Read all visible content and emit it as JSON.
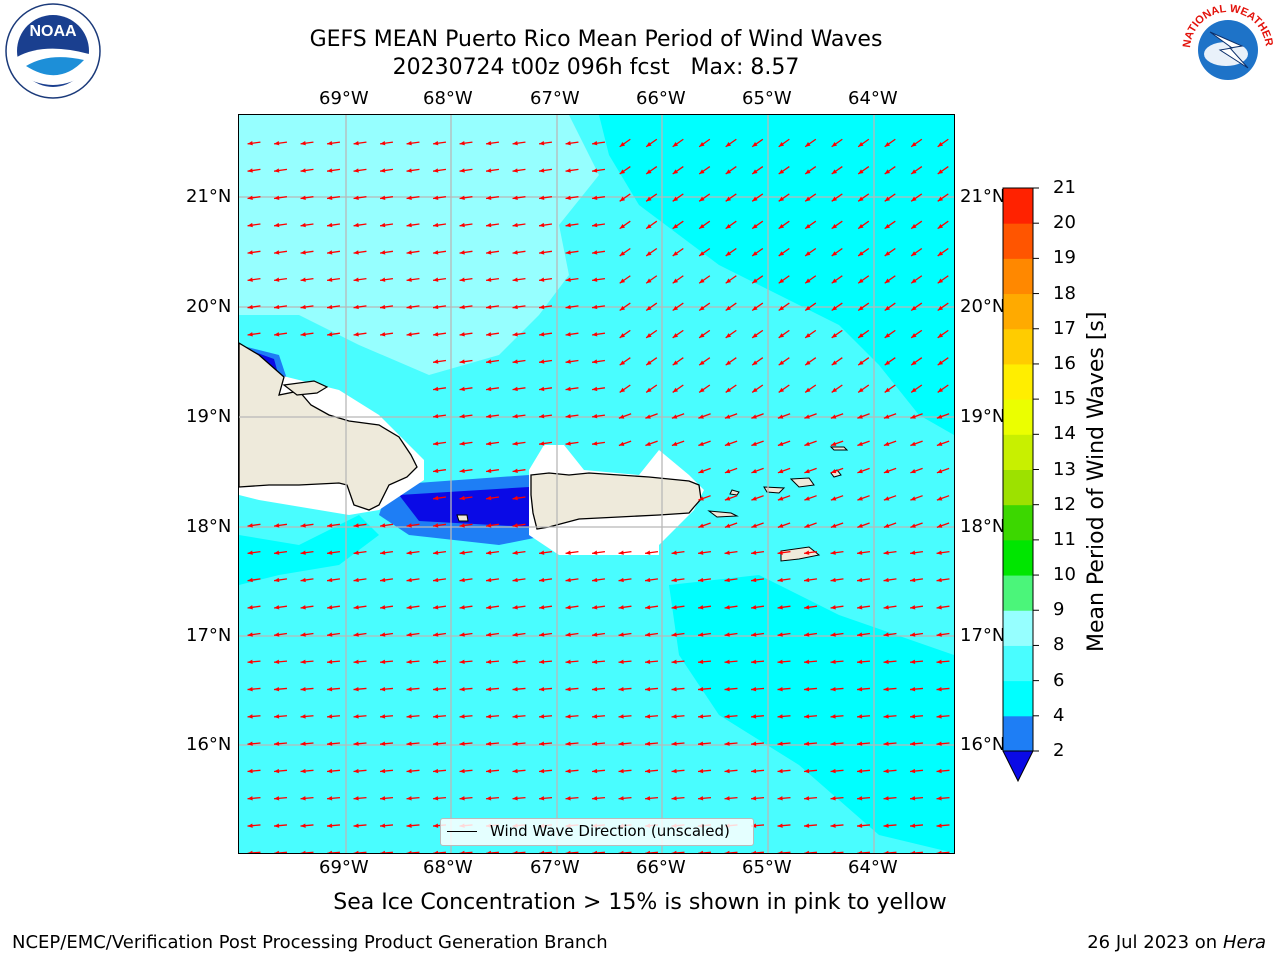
{
  "header": {
    "title_line1": "GEFS MEAN Puerto Rico Mean Period of Wind Waves",
    "title_line2": "20230724 t00z 096h fcst   Max: 8.57"
  },
  "logos": {
    "left": {
      "icon": "noaa-logo-icon",
      "text": "NOAA"
    },
    "right": {
      "icon": "national-weather-service-logo-icon",
      "text": "NATIONAL WEATHER SERVICE"
    }
  },
  "map": {
    "lon_ticks": [
      "69°W",
      "68°W",
      "67°W",
      "66°W",
      "65°W",
      "64°W"
    ],
    "lat_ticks": [
      "21°N",
      "20°N",
      "19°N",
      "18°N",
      "17°N",
      "16°N"
    ],
    "legend_label": "Wind Wave Direction (unscaled)",
    "arrow_color": "#ff0000",
    "land_color": "#eeeadb"
  },
  "colorbar": {
    "label": "Mean Period of Wind Waves [s]",
    "ticks": [
      "2",
      "4",
      "6",
      "8",
      "9",
      "10",
      "11",
      "12",
      "13",
      "14",
      "15",
      "16",
      "17",
      "18",
      "19",
      "20",
      "21"
    ],
    "colors": [
      "#0a0ae6",
      "#1e7ef5",
      "#00ffff",
      "#49fdff",
      "#96ffff",
      "#4bf57a",
      "#00e600",
      "#3cd700",
      "#9de100",
      "#c8f000",
      "#ebff00",
      "#ffee00",
      "#ffcc00",
      "#ffaa00",
      "#ff8800",
      "#ff5500",
      "#ff2200",
      "#ff0000"
    ]
  },
  "chart_data": {
    "type": "heatmap",
    "title": "GEFS MEAN Puerto Rico Mean Period of Wind Waves",
    "subtitle": "20230724 t00z 096h fcst   Max: 8.57",
    "units": "s",
    "max_value": 8.57,
    "colorbar_range": [
      2,
      21
    ],
    "x_range": [
      "70°W",
      "63.3°W"
    ],
    "y_range": [
      "15°N",
      "21.7°N"
    ],
    "dominant_wave_direction": "toward west-southwest"
  },
  "footer": {
    "note": "Sea Ice Concentration > 15% is shown in pink to yellow",
    "left": "NCEP/EMC/Verification Post Processing Product Generation Branch",
    "date": "26 Jul 2023 on ",
    "machine": "Hera"
  }
}
